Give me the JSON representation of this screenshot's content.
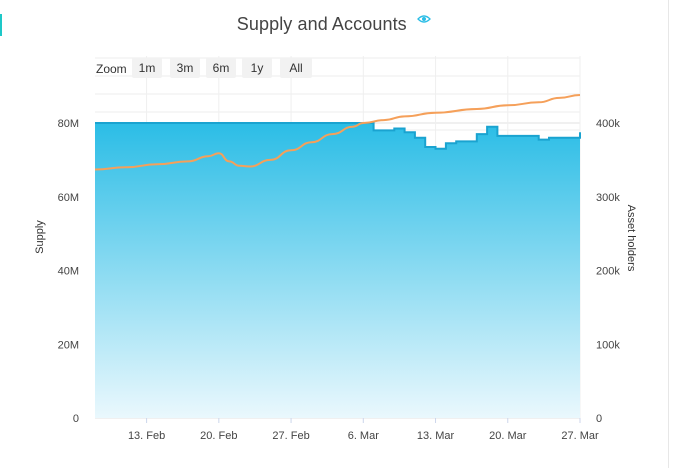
{
  "header": {
    "title": "Supply and Accounts",
    "icon": "eye-icon"
  },
  "zoom": {
    "label": "Zoom",
    "buttons": [
      "1m",
      "3m",
      "6m",
      "1y",
      "All"
    ]
  },
  "colors": {
    "supply_line": "#1aa3d0",
    "supply_fill_top": "#2bbde6",
    "supply_fill_bottom": "#eaf8fd",
    "holders_line": "#f5a05a",
    "accent": "#1ec8c8"
  },
  "chart_data": {
    "type": "area",
    "title": "Supply and Accounts",
    "x_start": "2025-02-08",
    "x_end": "2025-03-27",
    "x_tick_labels": [
      "13. Feb",
      "20. Feb",
      "27. Feb",
      "6. Mar",
      "13. Mar",
      "20. Mar",
      "27. Mar"
    ],
    "grid": true,
    "left_axis": {
      "label": "Supply",
      "ylim": [
        0,
        80000000
      ],
      "tick_labels": [
        "0",
        "20M",
        "40M",
        "60M",
        "80M"
      ]
    },
    "right_axis": {
      "label": "Asset holders",
      "ylim": [
        0,
        400000
      ],
      "tick_labels": [
        "0",
        "100k",
        "200k",
        "300k",
        "400k"
      ]
    },
    "series": [
      {
        "name": "Supply",
        "axis": "left",
        "type": "area",
        "points": [
          [
            "2025-02-08",
            80000000
          ],
          [
            "2025-03-06",
            80000000
          ],
          [
            "2025-03-07",
            80000000
          ],
          [
            "2025-03-07",
            78000000
          ],
          [
            "2025-03-09",
            78000000
          ],
          [
            "2025-03-09",
            78500000
          ],
          [
            "2025-03-10",
            78500000
          ],
          [
            "2025-03-10",
            77500000
          ],
          [
            "2025-03-11",
            77500000
          ],
          [
            "2025-03-11",
            76000000
          ],
          [
            "2025-03-12",
            76000000
          ],
          [
            "2025-03-12",
            73500000
          ],
          [
            "2025-03-13",
            73500000
          ],
          [
            "2025-03-13",
            73000000
          ],
          [
            "2025-03-14",
            73000000
          ],
          [
            "2025-03-14",
            74500000
          ],
          [
            "2025-03-15",
            74500000
          ],
          [
            "2025-03-15",
            75000000
          ],
          [
            "2025-03-17",
            75000000
          ],
          [
            "2025-03-17",
            77000000
          ],
          [
            "2025-03-18",
            77000000
          ],
          [
            "2025-03-18",
            79000000
          ],
          [
            "2025-03-19",
            79000000
          ],
          [
            "2025-03-19",
            76500000
          ],
          [
            "2025-03-23",
            76500000
          ],
          [
            "2025-03-23",
            75500000
          ],
          [
            "2025-03-24",
            75500000
          ],
          [
            "2025-03-24",
            76000000
          ],
          [
            "2025-03-27",
            76000000
          ],
          [
            "2025-03-27",
            77500000
          ]
        ]
      },
      {
        "name": "Asset holders",
        "axis": "right",
        "type": "line",
        "points": [
          [
            "2025-02-08",
            337000
          ],
          [
            "2025-02-11",
            340000
          ],
          [
            "2025-02-14",
            344000
          ],
          [
            "2025-02-17",
            348000
          ],
          [
            "2025-02-19",
            355000
          ],
          [
            "2025-02-20",
            359000
          ],
          [
            "2025-02-21",
            348000
          ],
          [
            "2025-02-22",
            342000
          ],
          [
            "2025-02-23",
            341000
          ],
          [
            "2025-02-25",
            350000
          ],
          [
            "2025-02-27",
            363000
          ],
          [
            "2025-03-01",
            374000
          ],
          [
            "2025-03-03",
            385000
          ],
          [
            "2025-03-05",
            395000
          ],
          [
            "2025-03-06",
            400000
          ],
          [
            "2025-03-08",
            404000
          ],
          [
            "2025-03-10",
            409000
          ],
          [
            "2025-03-13",
            414000
          ],
          [
            "2025-03-17",
            419000
          ],
          [
            "2025-03-20",
            424000
          ],
          [
            "2025-03-23",
            428000
          ],
          [
            "2025-03-25",
            434000
          ],
          [
            "2025-03-27",
            438000
          ]
        ]
      }
    ]
  }
}
